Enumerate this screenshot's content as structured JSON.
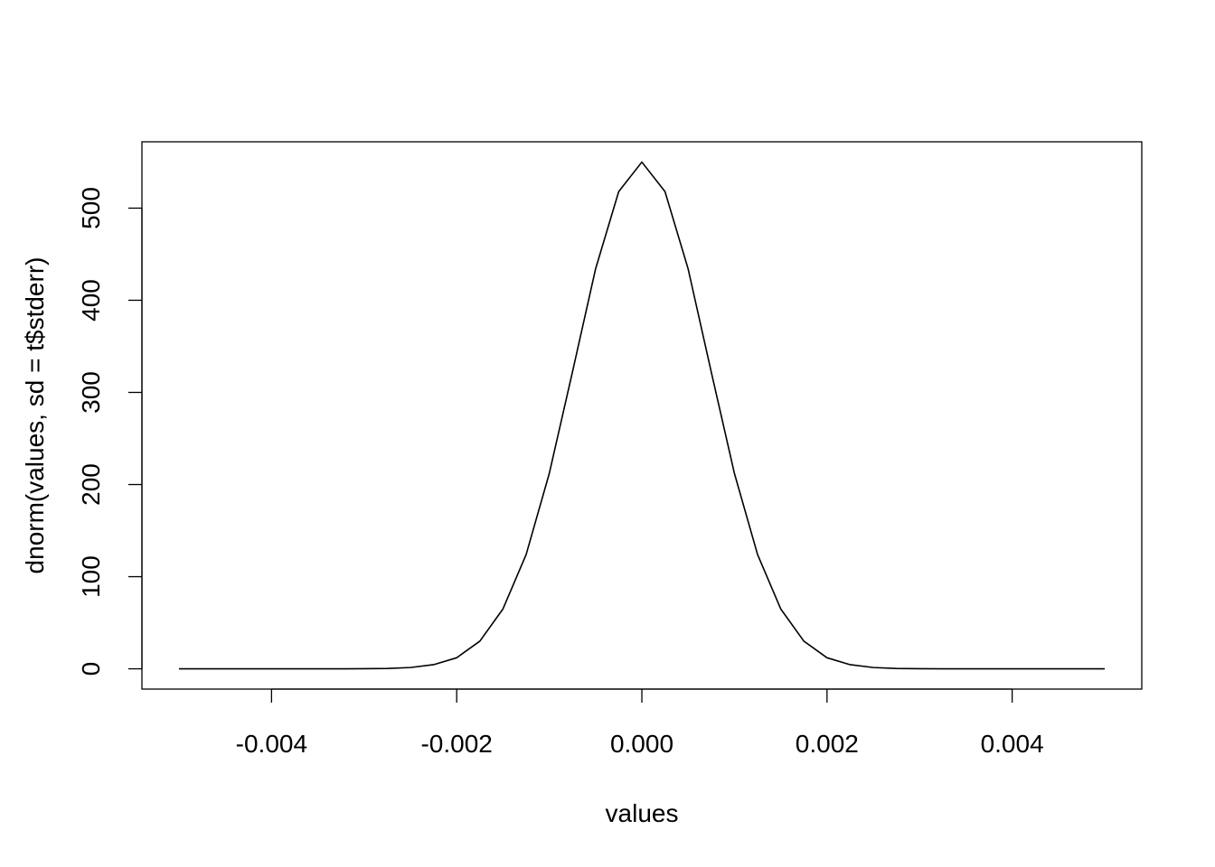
{
  "chart_data": {
    "type": "line",
    "x_label": "values",
    "y_label": "dnorm(values, sd = t$stderr)",
    "x": [
      -0.005,
      -0.00475,
      -0.0045,
      -0.00425,
      -0.004,
      -0.00375,
      -0.0035,
      -0.00325,
      -0.003,
      -0.00275,
      -0.0025,
      -0.00225,
      -0.002,
      -0.00175,
      -0.0015,
      -0.00125,
      -0.001,
      -0.00075,
      -0.0005,
      -0.00025,
      0,
      0.00025,
      0.0005,
      0.00075,
      0.001,
      0.00125,
      0.0015,
      0.00175,
      0.002,
      0.00225,
      0.0025,
      0.00275,
      0.003,
      0.00325,
      0.0035,
      0.00375,
      0.004,
      0.00425,
      0.0045,
      0.00475,
      0.005
    ],
    "values": [
      0,
      0,
      0,
      0,
      0,
      0,
      0,
      0,
      0.1,
      0.4,
      1.4,
      4.5,
      12,
      30,
      65,
      124,
      212,
      322,
      434,
      518,
      550,
      518,
      434,
      322,
      212,
      124,
      65,
      30,
      12,
      4.5,
      1.4,
      0.4,
      0.1,
      0,
      0,
      0,
      0,
      0,
      0,
      0,
      0
    ],
    "color": "#000000",
    "xlim": [
      -0.0054,
      0.0054
    ],
    "ylim": [
      -22,
      572
    ],
    "xticks": [
      -0.004,
      -0.002,
      {
        "value": 0,
        "label": "0.000"
      },
      0.002,
      0.004
    ],
    "yticks": [
      0,
      100,
      200,
      300,
      400,
      500
    ]
  }
}
